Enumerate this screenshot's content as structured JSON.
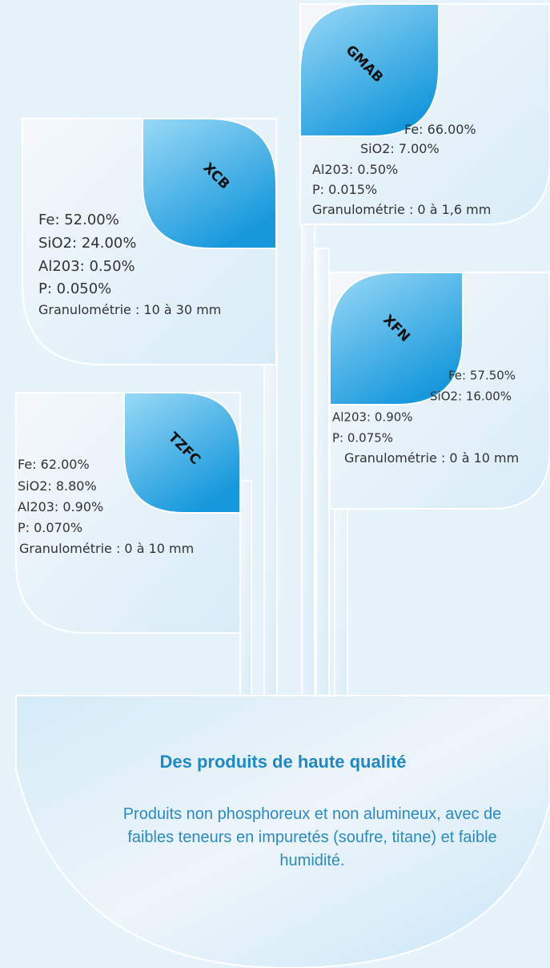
{
  "products": [
    {
      "name": "GMAB",
      "specs": [
        "Fe: 66.00%",
        "SiO2: 7.00%",
        "Al203: 0.50%",
        "P: 0.015%",
        "Granulométrie : 0 à 1,6 mm"
      ]
    },
    {
      "name": "XCB",
      "specs": [
        "Fe: 52.00%",
        "SiO2: 24.00%",
        "Al203: 0.50%",
        "P: 0.050%",
        "Granulométrie : 10 à 30 mm"
      ]
    },
    {
      "name": "XFN",
      "specs": [
        "Fe: 57.50%",
        "SiO2: 16.00%",
        "Al203: 0.90%",
        "P: 0.075%",
        "Granulométrie : 0 à 10 mm"
      ]
    },
    {
      "name": "TZFC",
      "specs": [
        "Fe: 62.00%",
        "SiO2: 8.80%",
        "Al203: 0.90%",
        "P: 0.070%",
        "Granulométrie : 0 à 10 mm"
      ]
    }
  ],
  "footer": {
    "title": "Des produits de haute qualité",
    "text": "Produits non phosphoreux et non alumineux, avec de faibles teneurs en impuretés (soufre, titane) et faible humidité."
  }
}
